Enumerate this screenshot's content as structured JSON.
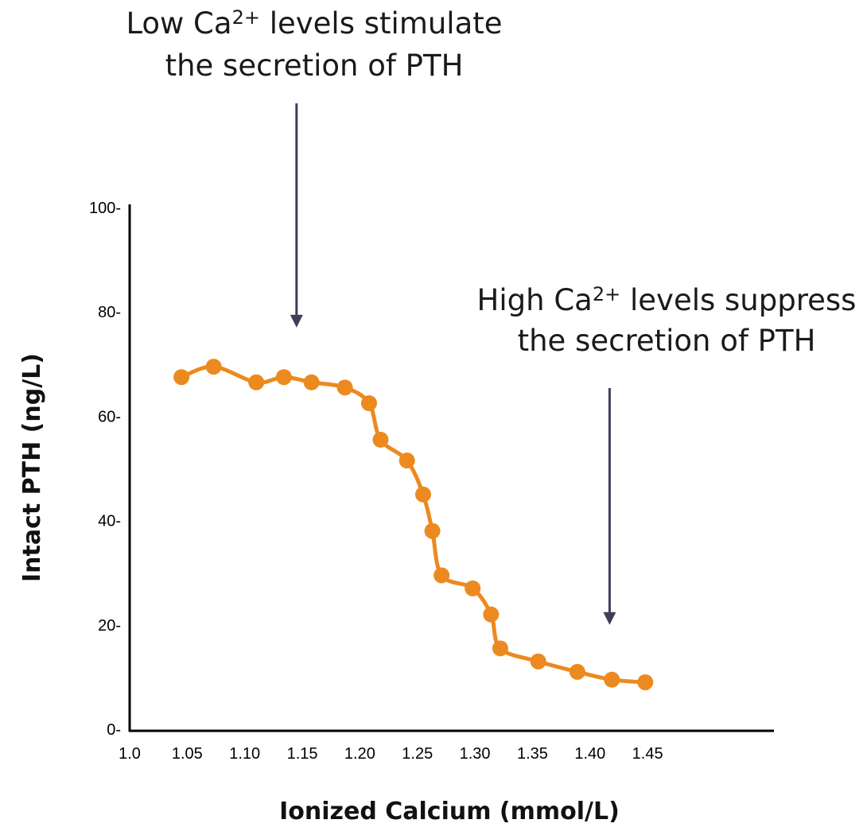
{
  "chart_data": {
    "type": "line",
    "xlabel": "Ionized Calcium (mmol/L)",
    "ylabel": "Intact PTH (ng/L)",
    "xlim": [
      1.0,
      1.5
    ],
    "ylim": [
      0,
      100
    ],
    "x_ticks": [
      {
        "value": 1.0,
        "label": "1.0",
        "highlight": false
      },
      {
        "value": 1.05,
        "label": "1.05",
        "highlight": false
      },
      {
        "value": 1.1,
        "label": "1.10",
        "highlight": true
      },
      {
        "value": 1.15,
        "label": "1.15",
        "highlight": true
      },
      {
        "value": 1.2,
        "label": "1.20",
        "highlight": true
      },
      {
        "value": 1.25,
        "label": "1.25",
        "highlight": true
      },
      {
        "value": 1.3,
        "label": "1.30",
        "highlight": true
      },
      {
        "value": 1.35,
        "label": "1.35",
        "highlight": false
      },
      {
        "value": 1.4,
        "label": "1.40",
        "highlight": false
      },
      {
        "value": 1.45,
        "label": "1.45",
        "highlight": false
      }
    ],
    "y_ticks": [
      {
        "value": 0,
        "label": "0-"
      },
      {
        "value": 20,
        "label": "20-"
      },
      {
        "value": 40,
        "label": "40-"
      },
      {
        "value": 60,
        "label": "60-"
      },
      {
        "value": 80,
        "label": "80-"
      },
      {
        "value": 100,
        "label": "100-"
      }
    ],
    "points": [
      [
        1.045,
        67.5
      ],
      [
        1.073,
        69.5
      ],
      [
        1.11,
        66.5
      ],
      [
        1.134,
        67.5
      ],
      [
        1.158,
        66.5
      ],
      [
        1.187,
        65.5
      ],
      [
        1.208,
        62.5
      ],
      [
        1.218,
        55.5
      ],
      [
        1.241,
        51.5
      ],
      [
        1.255,
        45.0
      ],
      [
        1.263,
        38.0
      ],
      [
        1.271,
        29.5
      ],
      [
        1.298,
        27.0
      ],
      [
        1.314,
        22.0
      ],
      [
        1.322,
        15.5
      ],
      [
        1.355,
        13.0
      ],
      [
        1.389,
        11.0
      ],
      [
        1.419,
        9.5
      ],
      [
        1.448,
        9.0
      ]
    ],
    "annotations": [
      {
        "line1_pre": "Low Ca",
        "sup": "2+",
        "line1_post": " levels stimulate",
        "line2": "the secretion of PTH",
        "arrow_x": 1.145,
        "arrow_y": 77
      },
      {
        "line1_pre": "High Ca",
        "sup": "2+",
        "line1_post": " levels suppress",
        "line2": "the secretion of PTH",
        "arrow_x": 1.417,
        "arrow_y": 20
      }
    ],
    "colors": {
      "series": "#ec8a1f",
      "axis": "#000000",
      "highlight_tick": "#d9241c",
      "arrow": "#443a5a"
    }
  }
}
